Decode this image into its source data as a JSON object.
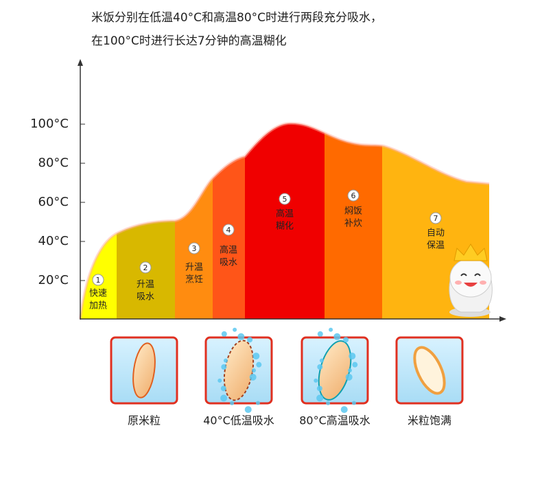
{
  "title": {
    "lines": [
      "米饭分别在低温40°C和高温80°C时进行两段充分吸水，",
      "在100°C时进行长达7分钟的高温糊化"
    ]
  },
  "y_axis": {
    "ticks": [
      "100°C",
      "80°C",
      "60°C",
      "40°C",
      "20°C"
    ]
  },
  "stages": [
    {
      "number": "1",
      "lines": [
        "快速",
        "加热"
      ]
    },
    {
      "number": "2",
      "lines": [
        "升温",
        "吸水"
      ]
    },
    {
      "number": "3",
      "lines": [
        "升温",
        "烹饪"
      ]
    },
    {
      "number": "4",
      "lines": [
        "高温",
        "吸水"
      ]
    },
    {
      "number": "5",
      "lines": [
        "高温",
        "糊化"
      ]
    },
    {
      "number": "6",
      "lines": [
        "焖饭",
        "补炊"
      ]
    },
    {
      "number": "7",
      "lines": [
        "自动",
        "保温"
      ]
    }
  ],
  "cards": [
    {
      "label": "原米粒"
    },
    {
      "label": "40°C低温吸水"
    },
    {
      "label": "80°C高温吸水"
    },
    {
      "label": "米粒饱满"
    }
  ]
}
